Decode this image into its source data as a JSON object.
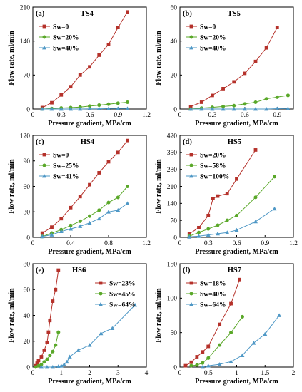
{
  "figure": {
    "xlabel": "Pressure gradient, MPa/cm",
    "ylabel": "Flow rate, ml/min"
  },
  "colors": {
    "series1": "#b5312a",
    "series2": "#5aa829",
    "series3": "#4f98c6"
  },
  "chart_data": [
    {
      "panel": "(a)",
      "title": "TS4",
      "type": "line",
      "xlabel": "Pressure gradient, MPa/cm",
      "ylabel": "Flow rate, ml/min",
      "xlim": [
        0,
        1.2
      ],
      "ylim": [
        0,
        210
      ],
      "xticks": [
        "0",
        "0.3",
        "0.6",
        "0.9",
        "1.2"
      ],
      "yticks": [
        "0",
        "70",
        "140",
        "210"
      ],
      "legend_position": "top-left",
      "series": [
        {
          "name": "Sw=0",
          "marker": "square",
          "x": [
            0.1,
            0.2,
            0.3,
            0.4,
            0.5,
            0.6,
            0.7,
            0.8,
            0.9,
            1.0
          ],
          "y": [
            3,
            13,
            29,
            46,
            70,
            87,
            111,
            133,
            168,
            200
          ]
        },
        {
          "name": "Sw=20%",
          "marker": "circle",
          "x": [
            0.1,
            0.2,
            0.3,
            0.4,
            0.5,
            0.6,
            0.7,
            0.8,
            0.9,
            1.0
          ],
          "y": [
            0,
            1,
            2,
            3,
            4,
            6,
            8,
            10,
            12,
            14
          ]
        },
        {
          "name": "Sw=40%",
          "marker": "triangle",
          "x": [
            0.1,
            0.2,
            0.3,
            0.4,
            0.5,
            0.6,
            0.7,
            0.8,
            0.9,
            1.0
          ],
          "y": [
            0,
            0,
            0,
            0,
            0,
            0.5,
            0.5,
            1,
            1,
            1
          ]
        }
      ]
    },
    {
      "panel": "(b)",
      "title": "TS5",
      "type": "line",
      "xlabel": "Pressure gradient, MPa/cm",
      "ylabel": "Flow rate, ml/min",
      "xlim": [
        0,
        1.05
      ],
      "ylim": [
        0,
        60
      ],
      "xticks": [
        "0",
        "0.3",
        "0.6",
        "0.9"
      ],
      "yticks": [
        "0",
        "20",
        "40",
        "60"
      ],
      "legend_position": "top-left",
      "series": [
        {
          "name": "Sw=0",
          "marker": "square",
          "x": [
            0.1,
            0.2,
            0.3,
            0.4,
            0.5,
            0.6,
            0.7,
            0.8,
            0.9
          ],
          "y": [
            1.5,
            4,
            8,
            12,
            16,
            21,
            28,
            36,
            48
          ]
        },
        {
          "name": "Sw=20%",
          "marker": "circle",
          "x": [
            0.1,
            0.2,
            0.3,
            0.4,
            0.5,
            0.6,
            0.7,
            0.8,
            0.9,
            1.0
          ],
          "y": [
            0,
            0.5,
            1,
            1.5,
            2,
            3,
            4,
            6,
            7,
            8
          ]
        },
        {
          "name": "Sw=40%",
          "marker": "triangle",
          "x": [
            0.1,
            0.2,
            0.3,
            0.4,
            0.5,
            0.6,
            0.7,
            0.8,
            0.9,
            1.0
          ],
          "y": [
            0,
            0,
            0,
            0,
            0,
            0,
            0,
            0,
            0.2,
            0.3
          ]
        }
      ]
    },
    {
      "panel": "(c)",
      "title": "HS4",
      "type": "line",
      "xlabel": "Pressure gradient, MPa/cm",
      "ylabel": "Flow rate, ml/min",
      "xlim": [
        0,
        1.2
      ],
      "ylim": [
        0,
        120
      ],
      "xticks": [
        "0",
        "0.4",
        "0.8",
        "1.2"
      ],
      "yticks": [
        "0",
        "30",
        "60",
        "90",
        "120"
      ],
      "legend_position": "top-left",
      "series": [
        {
          "name": "Sw=0",
          "marker": "square",
          "x": [
            0.1,
            0.2,
            0.3,
            0.4,
            0.5,
            0.6,
            0.7,
            0.8,
            0.9,
            1.0
          ],
          "y": [
            5,
            12,
            22,
            35,
            48,
            62,
            76,
            89,
            100,
            114
          ]
        },
        {
          "name": "Sw=25%",
          "marker": "circle",
          "x": [
            0.1,
            0.2,
            0.3,
            0.4,
            0.5,
            0.6,
            0.7,
            0.8,
            0.9,
            1.0
          ],
          "y": [
            1,
            5,
            9,
            14,
            19,
            25,
            32,
            41,
            47,
            60
          ]
        },
        {
          "name": "Sw=41%",
          "marker": "triangle",
          "x": [
            0.1,
            0.2,
            0.3,
            0.4,
            0.5,
            0.6,
            0.7,
            0.8,
            0.9,
            1.0
          ],
          "y": [
            1,
            3,
            7,
            10,
            13,
            17,
            22,
            30,
            32,
            40
          ]
        }
      ]
    },
    {
      "panel": "(d)",
      "title": "HS5",
      "type": "line",
      "xlabel": "Pressure gradient, MPa/cm",
      "ylabel": "Flow rate, ml/min",
      "xlim": [
        0,
        1.2
      ],
      "ylim": [
        0,
        420
      ],
      "xticks": [
        "0",
        "0.3",
        "0.6",
        "0.9",
        "1.2"
      ],
      "yticks": [
        "0",
        "70",
        "140",
        "210",
        "280",
        "350",
        "420"
      ],
      "legend_position": "top-left",
      "series": [
        {
          "name": "Sw=20%",
          "marker": "square",
          "x": [
            0.1,
            0.2,
            0.3,
            0.35,
            0.4,
            0.5,
            0.6,
            0.8
          ],
          "y": [
            15,
            40,
            90,
            160,
            170,
            180,
            240,
            360
          ]
        },
        {
          "name": "Sw=58%",
          "marker": "circle",
          "x": [
            0.1,
            0.2,
            0.3,
            0.4,
            0.5,
            0.6,
            0.8,
            1.0
          ],
          "y": [
            5,
            20,
            35,
            50,
            70,
            90,
            165,
            250
          ]
        },
        {
          "name": "Sw=100%",
          "marker": "triangle",
          "x": [
            0.1,
            0.2,
            0.3,
            0.4,
            0.5,
            0.6,
            0.8,
            1.0
          ],
          "y": [
            2,
            5,
            10,
            15,
            20,
            30,
            65,
            118
          ]
        }
      ]
    },
    {
      "panel": "(e)",
      "title": "HS6",
      "type": "line",
      "xlabel": "Pressure gradient, MPa/cm",
      "ylabel": "Flow rate, ml/min",
      "xlim": [
        0,
        4
      ],
      "ylim": [
        0,
        80
      ],
      "xticks": [
        "0",
        "1",
        "2",
        "3",
        "4"
      ],
      "yticks": [
        "0",
        "20",
        "40",
        "60",
        "80"
      ],
      "legend_position": "top-right",
      "series": [
        {
          "name": "Sw=23%",
          "marker": "square",
          "x": [
            0.1,
            0.15,
            0.2,
            0.3,
            0.4,
            0.5,
            0.55,
            0.6,
            0.7,
            0.8,
            0.9
          ],
          "y": [
            1,
            3,
            5,
            8,
            13,
            19,
            27,
            36,
            51,
            60,
            75
          ]
        },
        {
          "name": "Sw=45%",
          "marker": "circle",
          "x": [
            0.1,
            0.2,
            0.3,
            0.4,
            0.5,
            0.6,
            0.7,
            0.8,
            0.9
          ],
          "y": [
            0,
            1,
            2,
            4,
            6,
            9,
            12,
            17,
            27
          ]
        },
        {
          "name": "Sw=64%",
          "marker": "triangle",
          "x": [
            0.3,
            0.5,
            0.7,
            0.9,
            1.0,
            1.1,
            1.2,
            1.3,
            1.6,
            2.0,
            2.4,
            2.8,
            3.6
          ],
          "y": [
            0,
            0,
            0,
            0.5,
            1,
            2,
            4,
            8,
            13,
            17,
            26,
            30,
            48
          ]
        }
      ]
    },
    {
      "panel": "(f)",
      "title": "HS7",
      "type": "line",
      "xlabel": "Pressure gradient, MPa/cm",
      "ylabel": "Flow rate, ml/min",
      "xlim": [
        0,
        2
      ],
      "ylim": [
        0,
        150
      ],
      "xticks": [
        "0",
        "0.5",
        "1",
        "1.5",
        "2"
      ],
      "yticks": [
        "0",
        "50",
        "100",
        "150"
      ],
      "legend_position": "top-left",
      "series": [
        {
          "name": "Sw=18%",
          "marker": "square",
          "x": [
            0.1,
            0.2,
            0.3,
            0.4,
            0.5,
            0.7,
            0.9,
            1.05
          ],
          "y": [
            2,
            7,
            15,
            22,
            30,
            62,
            92,
            127
          ]
        },
        {
          "name": "Sw=40%",
          "marker": "circle",
          "x": [
            0.2,
            0.3,
            0.4,
            0.5,
            0.7,
            0.9,
            1.1
          ],
          "y": [
            2,
            3,
            6,
            13,
            32,
            50,
            73
          ]
        },
        {
          "name": "Sw=64%",
          "marker": "triangle",
          "x": [
            0.4,
            0.5,
            0.7,
            0.9,
            1.1,
            1.3,
            1.5,
            1.75
          ],
          "y": [
            0,
            2,
            4,
            8,
            17,
            35,
            48,
            75
          ]
        }
      ]
    }
  ]
}
